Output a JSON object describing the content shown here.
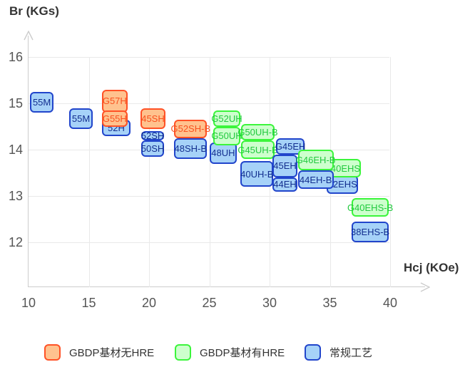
{
  "axis_titles": {
    "y": "Br (KGs)",
    "x": "Hcj (KOe)"
  },
  "legend": {
    "items": [
      {
        "label": "GBDP基材无HRE",
        "series": "gbdp_no_hre"
      },
      {
        "label": "GBDP基材有HRE",
        "series": "gbdp_hre"
      },
      {
        "label": "常规工艺",
        "series": "conventional"
      }
    ]
  },
  "colors": {
    "background": "#ffffff",
    "grid": "#e9e9e9",
    "axis": "#cccccc",
    "tick_text": "#555555",
    "title_text": "#333333",
    "legend_text": "#333333"
  },
  "series_styles": {
    "gbdp_no_hre": {
      "fill": "#FFC28E",
      "border": "#FF5226",
      "text": "#F8511F"
    },
    "gbdp_hre": {
      "fill": "#CDFFCD",
      "border": "#3BF53B",
      "text": "#21C93E"
    },
    "conventional": {
      "fill": "#A6D2F8",
      "border": "#2145CB",
      "text": "#132F8F"
    }
  },
  "chart_data": {
    "type": "labeled_range_boxes",
    "title": "",
    "xlabel": "Hcj (KOe)",
    "ylabel": "Br (KGs)",
    "x_unit": "KOe",
    "y_unit": "KGs",
    "grid": true,
    "legend_position": "bottom",
    "axes": {
      "x": {
        "min": 10,
        "max": 40,
        "ticks": [
          10,
          15,
          20,
          25,
          30,
          35,
          40
        ]
      },
      "y": {
        "min": 12,
        "max": 16,
        "ticks": [
          16,
          15,
          14,
          13,
          12
        ]
      }
    },
    "series": [
      {
        "id": "gbdp_no_hre",
        "label": "GBDP基材无HRE"
      },
      {
        "id": "gbdp_hre",
        "label": "GBDP基材有HRE"
      },
      {
        "id": "conventional",
        "label": "常规工艺"
      }
    ],
    "boxes": [
      {
        "label": "52H",
        "series": "conventional",
        "x": [
          16.1,
          18.45
        ],
        "y": [
          14.3,
          14.65
        ]
      },
      {
        "label": "G57H",
        "series": "gbdp_no_hre",
        "x": [
          16.1,
          18.2
        ],
        "y": [
          14.8,
          15.3
        ]
      },
      {
        "label": "G55H",
        "series": "gbdp_no_hre",
        "x": [
          16.1,
          18.2
        ],
        "y": [
          14.5,
          14.85
        ]
      },
      {
        "label": "52SH",
        "series": "conventional",
        "x": [
          19.35,
          21.25
        ],
        "y": [
          14.2,
          14.4
        ]
      },
      {
        "label": "50SH",
        "series": "conventional",
        "x": [
          19.35,
          21.25
        ],
        "y": [
          13.85,
          14.2
        ]
      },
      {
        "label": "45SH",
        "series": "gbdp_no_hre",
        "x": [
          19.3,
          21.35
        ],
        "y": [
          14.45,
          14.9
        ]
      },
      {
        "label": "48SH-B",
        "series": "conventional",
        "x": [
          22.1,
          24.8
        ],
        "y": [
          13.8,
          14.25
        ]
      },
      {
        "label": "G52SH-B",
        "series": "gbdp_no_hre",
        "x": [
          22.1,
          24.8
        ],
        "y": [
          14.25,
          14.65
        ]
      },
      {
        "label": "48UH",
        "series": "conventional",
        "x": [
          25.0,
          27.3
        ],
        "y": [
          13.7,
          14.15
        ]
      },
      {
        "label": "G52UH",
        "series": "gbdp_hre",
        "x": [
          25.3,
          27.6
        ],
        "y": [
          14.5,
          14.85
        ]
      },
      {
        "label": "G50UH",
        "series": "gbdp_hre",
        "x": [
          25.3,
          27.6
        ],
        "y": [
          14.1,
          14.5
        ]
      },
      {
        "label": "40UH-B",
        "series": "conventional",
        "x": [
          27.6,
          30.3
        ],
        "y": [
          13.2,
          13.75
        ]
      },
      {
        "label": "G50UH-B",
        "series": "gbdp_hre",
        "x": [
          27.65,
          30.4
        ],
        "y": [
          14.2,
          14.55
        ]
      },
      {
        "label": "G45UH-B",
        "series": "gbdp_hre",
        "x": [
          27.65,
          30.4
        ],
        "y": [
          13.8,
          14.2
        ]
      },
      {
        "label": "G45EH",
        "series": "conventional",
        "x": [
          30.55,
          32.9
        ],
        "y": [
          13.9,
          14.25
        ]
      },
      {
        "label": "45EH",
        "series": "conventional",
        "x": [
          30.25,
          32.3
        ],
        "y": [
          13.4,
          13.9
        ]
      },
      {
        "label": "44EH",
        "series": "conventional",
        "x": [
          30.25,
          32.3
        ],
        "y": [
          13.1,
          13.4
        ]
      },
      {
        "label": "42EHS",
        "series": "conventional",
        "x": [
          34.75,
          37.35
        ],
        "y": [
          13.05,
          13.45
        ]
      },
      {
        "label": "40EHS",
        "series": "gbdp_hre",
        "x": [
          35.0,
          37.6
        ],
        "y": [
          13.4,
          13.8
        ]
      },
      {
        "label": "44EH-B",
        "series": "conventional",
        "x": [
          32.35,
          35.3
        ],
        "y": [
          13.15,
          13.55
        ]
      },
      {
        "label": "G46EH-B",
        "series": "gbdp_hre",
        "x": [
          32.35,
          35.3
        ],
        "y": [
          13.55,
          14.0
        ]
      },
      {
        "label": "G40EHS-B",
        "series": "gbdp_hre",
        "x": [
          36.8,
          39.9
        ],
        "y": [
          12.55,
          12.95
        ]
      },
      {
        "label": "38EHS-B",
        "series": "conventional",
        "x": [
          36.8,
          39.9
        ],
        "y": [
          12.0,
          12.45
        ]
      },
      {
        "label": "55M",
        "series": "conventional",
        "x": [
          10.1,
          12.1
        ],
        "y": [
          14.8,
          15.25
        ]
      },
      {
        "label": "55M",
        "series": "conventional",
        "x": [
          13.4,
          15.3
        ],
        "y": [
          14.45,
          14.9
        ]
      }
    ]
  }
}
